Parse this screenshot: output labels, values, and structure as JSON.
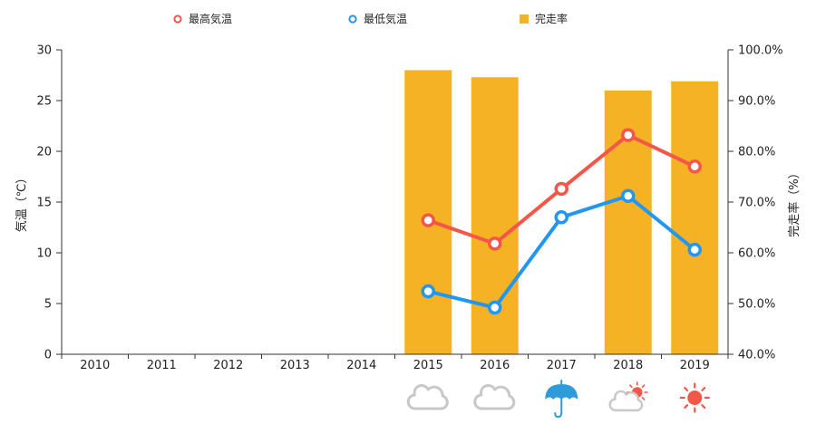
{
  "chart_data": {
    "type": "bar+line",
    "categories": [
      "2010",
      "2011",
      "2012",
      "2013",
      "2014",
      "2015",
      "2016",
      "2017",
      "2018",
      "2019"
    ],
    "series": [
      {
        "name": "最高気温",
        "type": "line",
        "axis": "left",
        "color": "#F4574A",
        "values": [
          null,
          null,
          null,
          null,
          null,
          13.2,
          10.9,
          16.3,
          21.6,
          18.5
        ]
      },
      {
        "name": "最低気温",
        "type": "line",
        "axis": "left",
        "color": "#2196F3",
        "values": [
          null,
          null,
          null,
          null,
          null,
          6.2,
          4.6,
          13.5,
          15.6,
          10.3
        ]
      },
      {
        "name": "完走率",
        "type": "bar",
        "axis": "right",
        "color": "#F5B225",
        "values": [
          null,
          null,
          null,
          null,
          null,
          96.0,
          94.6,
          null,
          92.0,
          93.8
        ]
      }
    ],
    "legend_position": "top",
    "y_left": {
      "label": "気温（℃）",
      "min": 0,
      "max": 30,
      "ticks": [
        "0",
        "5",
        "10",
        "15",
        "20",
        "25",
        "30"
      ]
    },
    "y_right": {
      "label": "完走率（%）",
      "min": 40,
      "max": 100,
      "ticks": [
        "40.0%",
        "50.0%",
        "60.0%",
        "70.0%",
        "80.0%",
        "90.0%",
        "100.0%"
      ]
    },
    "weather_icons": [
      null,
      null,
      null,
      null,
      null,
      "cloud-icon",
      "cloud-icon",
      "umbrella-icon",
      "cloud-sun-icon",
      "sun-icon"
    ],
    "icon_colors": {
      "cloud": "#C8C8C8",
      "umbrella": "#2E9BDA",
      "sun": "#F4574A"
    }
  }
}
